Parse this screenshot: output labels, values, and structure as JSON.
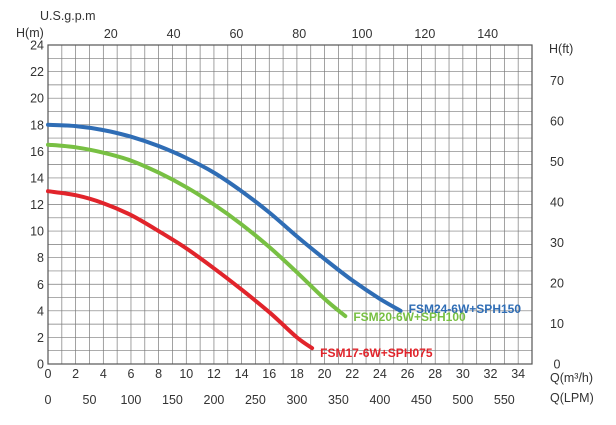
{
  "chart_data": {
    "type": "line",
    "xlabel": "Q(m³/h)",
    "xlabel_lpm": "Q(LPM)",
    "xlabel_top": "U.S.g.p.m",
    "ylabel": "H(m)",
    "ylabel_right": "H(ft)",
    "xlim": [
      0,
      35
    ],
    "ylim": [
      0,
      24
    ],
    "grid": true,
    "x_ticks": [
      0,
      2,
      4,
      6,
      8,
      10,
      12,
      14,
      16,
      18,
      20,
      22,
      24,
      26,
      28,
      30,
      32,
      34
    ],
    "y_ticks": [
      0,
      2,
      4,
      6,
      8,
      10,
      12,
      14,
      16,
      18,
      20,
      22,
      24
    ],
    "lpm_ticks": [
      0,
      50,
      100,
      150,
      200,
      250,
      300,
      350,
      400,
      450,
      500,
      550
    ],
    "gpm_ticks": [
      20,
      40,
      60,
      80,
      100,
      120,
      140
    ],
    "ft_ticks": [
      0,
      10,
      20,
      30,
      40,
      50,
      60,
      70
    ],
    "series": [
      {
        "name": "FSM24-6W+SPH150",
        "color": "#2f6db5",
        "x": [
          0,
          2,
          4,
          6,
          8,
          10,
          12,
          14,
          16,
          18,
          20,
          22,
          24,
          25.5
        ],
        "y": [
          18,
          17.9,
          17.6,
          17.1,
          16.4,
          15.5,
          14.4,
          13.0,
          11.4,
          9.6,
          7.9,
          6.3,
          4.9,
          4.0
        ]
      },
      {
        "name": "FSM20-6W+SPH100",
        "color": "#78c043",
        "x": [
          0,
          2,
          4,
          6,
          8,
          10,
          12,
          14,
          16,
          18,
          20,
          21.5
        ],
        "y": [
          16.5,
          16.3,
          15.9,
          15.3,
          14.4,
          13.3,
          12.0,
          10.5,
          8.8,
          6.9,
          4.9,
          3.6
        ]
      },
      {
        "name": "FSM17-6W+SPH075",
        "color": "#e1242b",
        "x": [
          0,
          2,
          4,
          6,
          8,
          10,
          12,
          14,
          16,
          18,
          19.1
        ],
        "y": [
          13,
          12.7,
          12.1,
          11.2,
          10.0,
          8.7,
          7.2,
          5.6,
          3.9,
          2.0,
          1.2
        ]
      }
    ]
  }
}
